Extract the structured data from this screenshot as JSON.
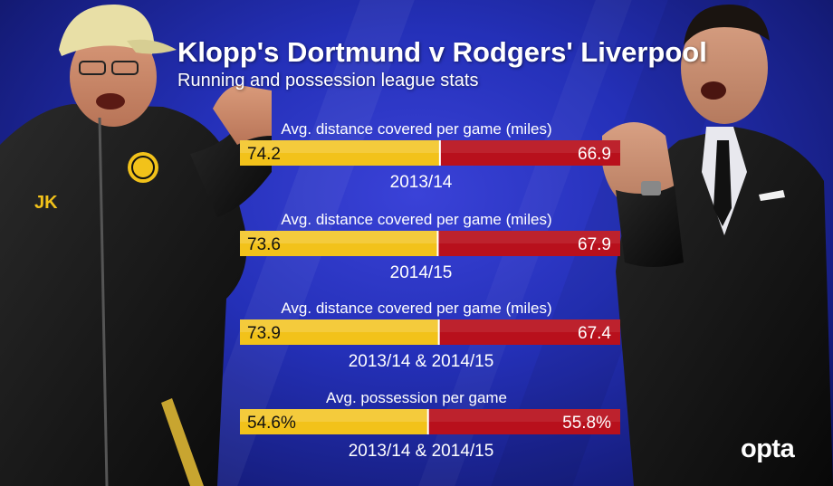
{
  "header": {
    "title": "Klopp's Dortmund v Rodgers' Liverpool",
    "subtitle": "Running and possession league stats"
  },
  "logo": {
    "text": "opta"
  },
  "colors": {
    "dortmund": "#f2c21a",
    "liverpool": "#b8101c",
    "background": "#2430b8"
  },
  "chart_data": [
    {
      "type": "bar",
      "orientation": "horizontal-stacked-comparison",
      "title": "Avg. distance covered per game (miles)",
      "category": "2013/14",
      "series": [
        {
          "value": 74.2,
          "label": "74.2",
          "color": "#f2c21a"
        },
        {
          "value": 66.9,
          "label": "66.9",
          "color": "#b8101c"
        }
      ]
    },
    {
      "type": "bar",
      "orientation": "horizontal-stacked-comparison",
      "title": "Avg. distance covered per game (miles)",
      "category": "2014/15",
      "series": [
        {
          "value": 73.6,
          "label": "73.6",
          "color": "#f2c21a"
        },
        {
          "value": 67.9,
          "label": "67.9",
          "color": "#b8101c"
        }
      ]
    },
    {
      "type": "bar",
      "orientation": "horizontal-stacked-comparison",
      "title": "Avg. distance covered per game (miles)",
      "category": "2013/14 & 2014/15",
      "series": [
        {
          "value": 73.9,
          "label": "73.9",
          "color": "#f2c21a"
        },
        {
          "value": 67.4,
          "label": "67.4",
          "color": "#b8101c"
        }
      ]
    },
    {
      "type": "bar",
      "orientation": "horizontal-stacked-comparison",
      "title": "Avg. possession per game",
      "category": "2013/14 & 2014/15",
      "series": [
        {
          "value": 54.6,
          "label": "54.6%",
          "color": "#f2c21a"
        },
        {
          "value": 55.8,
          "label": "55.8%",
          "color": "#b8101c"
        }
      ]
    }
  ]
}
